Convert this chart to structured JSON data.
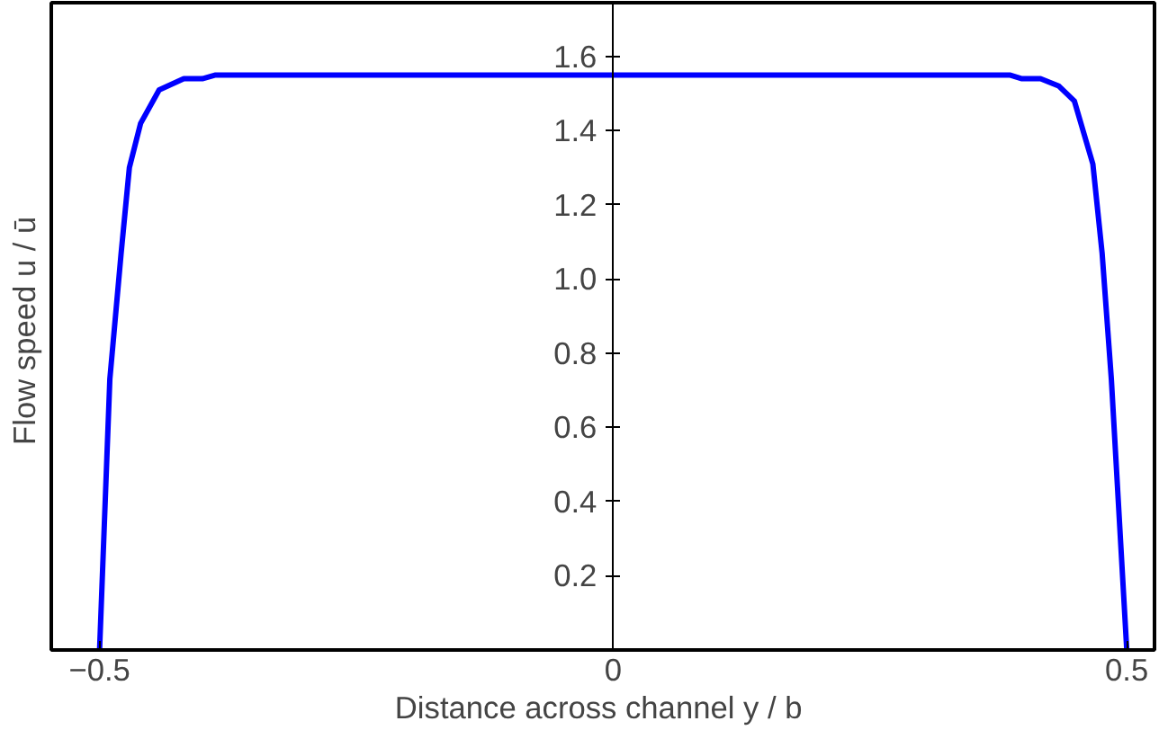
{
  "chart_data": {
    "type": "line",
    "xlabel": "Distance across channel  y / b",
    "ylabel": "Flow speed  u / ū",
    "xlim": [
      -0.547,
      0.527
    ],
    "ylim": [
      0,
      1.745
    ],
    "xticks": [
      {
        "value": -0.5,
        "label": "−0.5"
      },
      0,
      0.5
    ],
    "yticks": [
      0.2,
      0.4,
      0.6,
      0.8,
      {
        "value": 1.0,
        "label": "1.0"
      },
      1.2,
      1.4,
      1.6
    ],
    "grid": false,
    "marker": "none",
    "line_style": "solid",
    "series": [
      {
        "color": "#0000ff",
        "x": [
          -0.5,
          -0.49,
          -0.479,
          -0.471,
          -0.46,
          -0.442,
          -0.418,
          -0.4,
          -0.387,
          0.386,
          0.398,
          0.416,
          0.434,
          0.449,
          0.467,
          0.476,
          0.485,
          0.5
        ],
        "values": [
          0,
          0.73,
          1.07,
          1.3,
          1.42,
          1.51,
          1.54,
          1.54,
          1.55,
          1.55,
          1.54,
          1.54,
          1.52,
          1.48,
          1.31,
          1.07,
          0.73,
          0
        ]
      }
    ]
  }
}
